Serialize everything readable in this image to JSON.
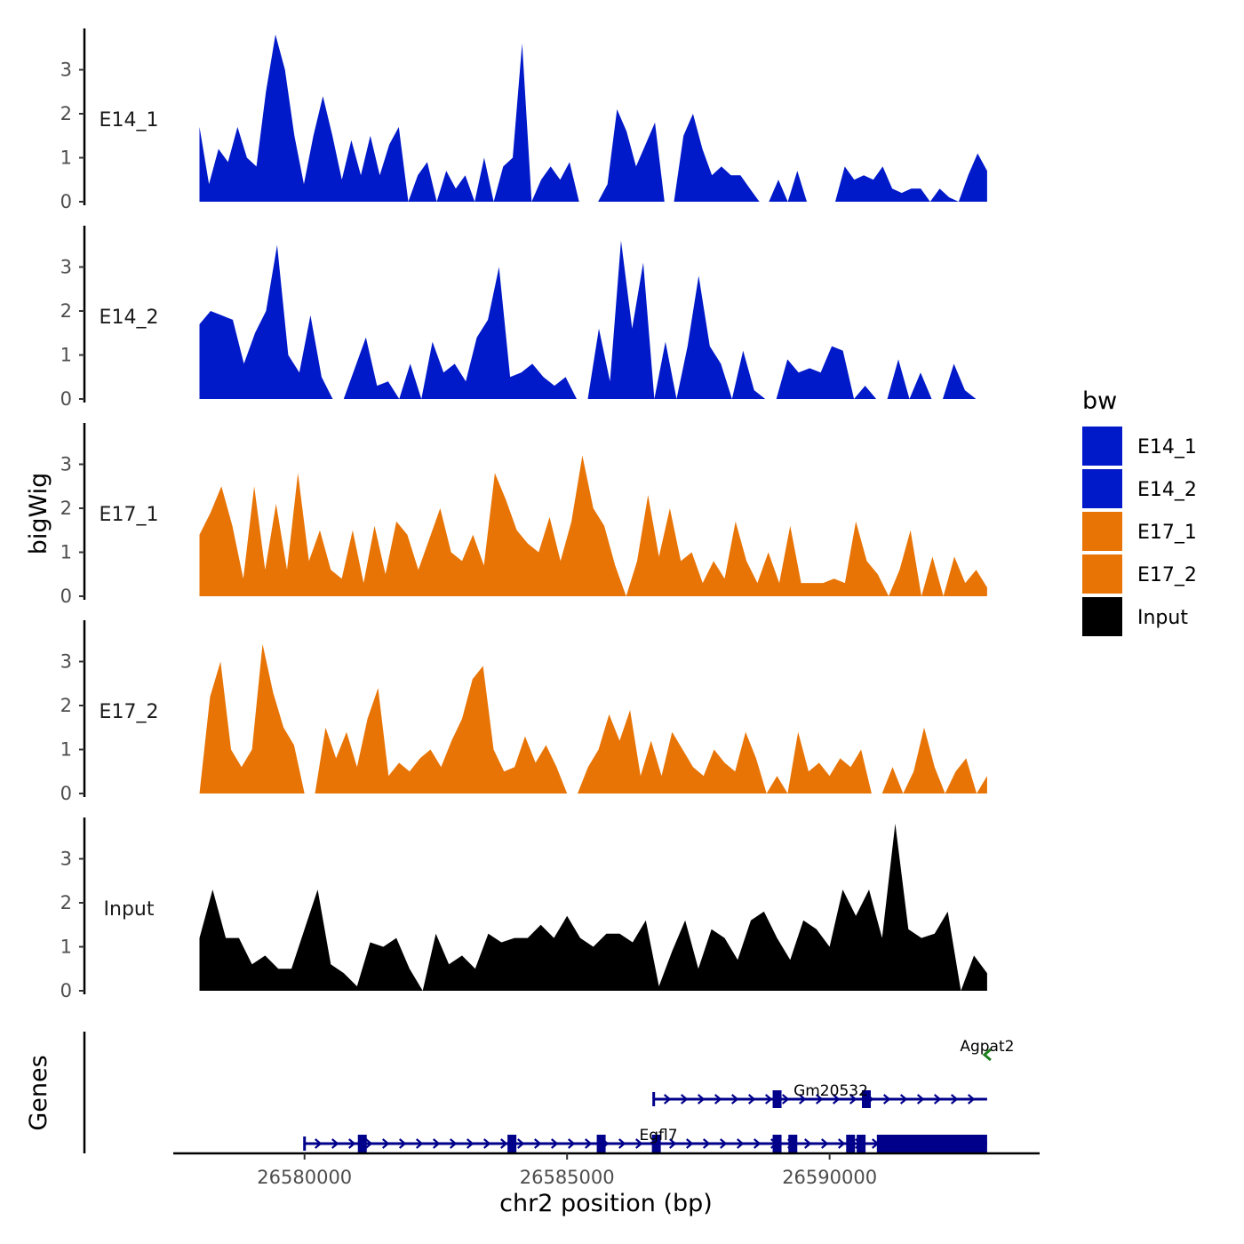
{
  "chart_data": {
    "type": "area",
    "title": "",
    "ylabel": "bigWig",
    "xlabel": "chr2 position (bp)",
    "xlim": [
      26577500,
      26594000
    ],
    "track_x_range": [
      26578000,
      26593000
    ],
    "ylim": [
      0,
      3.85
    ],
    "yticks": [
      0,
      1,
      2,
      3
    ],
    "xticks": [
      26580000,
      26585000,
      26590000
    ],
    "xtick_labels": [
      "26580000",
      "26585000",
      "26590000"
    ],
    "legend": {
      "title": "bw",
      "position": "right",
      "entries": [
        {
          "label": "E14_1",
          "color": "#0019C9"
        },
        {
          "label": "E14_2",
          "color": "#0019C9"
        },
        {
          "label": "E17_1",
          "color": "#E87405"
        },
        {
          "label": "E17_2",
          "color": "#E87405"
        },
        {
          "label": "Input",
          "color": "#000000"
        }
      ]
    },
    "series": [
      {
        "name": "E14_1",
        "color": "#0019C9",
        "values": [
          1.7,
          0.4,
          1.2,
          0.9,
          1.7,
          1.0,
          0.8,
          2.5,
          3.8,
          3.0,
          1.5,
          0.4,
          1.5,
          2.4,
          1.5,
          0.5,
          1.4,
          0.6,
          1.5,
          0.6,
          1.3,
          1.7,
          0.0,
          0.6,
          0.9,
          0.0,
          0.7,
          0.3,
          0.6,
          0.0,
          1.0,
          0.0,
          0.8,
          1.0,
          3.6,
          0.0,
          0.5,
          0.8,
          0.5,
          0.9,
          0.0,
          0.0,
          0.0,
          0.4,
          2.1,
          1.6,
          0.8,
          1.3,
          1.8,
          0.0,
          0.0,
          1.5,
          2.0,
          1.2,
          0.6,
          0.8,
          0.6,
          0.6,
          0.3,
          0.0,
          0.0,
          0.5,
          0.0,
          0.7,
          0.0,
          0.0,
          0.0,
          0.0,
          0.8,
          0.5,
          0.6,
          0.5,
          0.8,
          0.3,
          0.2,
          0.3,
          0.3,
          0.0,
          0.3,
          0.1,
          0.0,
          0.6,
          1.1,
          0.7
        ]
      },
      {
        "name": "E14_2",
        "color": "#0019C9",
        "values": [
          1.7,
          2.0,
          1.9,
          1.8,
          0.8,
          1.5,
          2.0,
          3.5,
          1.0,
          0.6,
          1.9,
          0.5,
          0.0,
          0.0,
          0.7,
          1.4,
          0.3,
          0.4,
          0.0,
          0.8,
          0.0,
          1.3,
          0.6,
          0.8,
          0.4,
          1.4,
          1.8,
          3.0,
          0.5,
          0.6,
          0.8,
          0.5,
          0.3,
          0.5,
          0.0,
          0.0,
          1.6,
          0.4,
          3.6,
          1.6,
          3.1,
          0.0,
          1.3,
          0.0,
          1.2,
          2.8,
          1.2,
          0.8,
          0.0,
          1.1,
          0.2,
          0.0,
          0.0,
          0.9,
          0.6,
          0.7,
          0.6,
          1.2,
          1.1,
          0.0,
          0.3,
          0.0,
          0.0,
          0.9,
          0.0,
          0.6,
          0.0,
          0.0,
          0.8,
          0.2,
          0.0,
          0.0
        ]
      },
      {
        "name": "E17_1",
        "color": "#E87405",
        "values": [
          1.4,
          1.9,
          2.5,
          1.6,
          0.4,
          2.5,
          0.6,
          2.1,
          0.6,
          2.8,
          0.8,
          1.5,
          0.6,
          0.4,
          1.5,
          0.3,
          1.6,
          0.5,
          1.7,
          1.4,
          0.6,
          1.3,
          2.0,
          1.0,
          0.8,
          1.4,
          0.7,
          2.8,
          2.2,
          1.5,
          1.2,
          1.0,
          1.8,
          0.8,
          1.7,
          3.2,
          2.0,
          1.6,
          0.7,
          0.0,
          0.8,
          2.3,
          0.9,
          2.0,
          0.8,
          1.0,
          0.3,
          0.8,
          0.4,
          1.7,
          0.8,
          0.3,
          1.0,
          0.3,
          1.6,
          0.3,
          0.3,
          0.3,
          0.4,
          0.3,
          1.7,
          0.8,
          0.5,
          0.0,
          0.6,
          1.5,
          0.0,
          0.9,
          0.0,
          0.9,
          0.3,
          0.6,
          0.2
        ]
      },
      {
        "name": "E17_2",
        "color": "#E87405",
        "values": [
          0.0,
          2.2,
          3.0,
          1.0,
          0.6,
          1.0,
          3.4,
          2.3,
          1.5,
          1.1,
          0.0,
          0.0,
          1.5,
          0.8,
          1.4,
          0.6,
          1.7,
          2.4,
          0.4,
          0.7,
          0.5,
          0.8,
          1.0,
          0.6,
          1.2,
          1.7,
          2.6,
          2.9,
          1.0,
          0.5,
          0.6,
          1.3,
          0.7,
          1.1,
          0.6,
          0.0,
          0.0,
          0.6,
          1.0,
          1.8,
          1.2,
          1.9,
          0.4,
          1.2,
          0.4,
          1.4,
          1.0,
          0.6,
          0.4,
          1.0,
          0.7,
          0.5,
          1.4,
          0.8,
          0.0,
          0.4,
          0.0,
          1.4,
          0.5,
          0.7,
          0.4,
          0.8,
          0.6,
          1.0,
          0.0,
          0.0,
          0.6,
          0.0,
          0.5,
          1.5,
          0.6,
          0.0,
          0.5,
          0.8,
          0.0,
          0.4
        ]
      },
      {
        "name": "Input",
        "color": "#000000",
        "values": [
          1.2,
          2.3,
          1.2,
          1.2,
          0.6,
          0.8,
          0.5,
          0.5,
          1.4,
          2.3,
          0.6,
          0.4,
          0.1,
          1.1,
          1.0,
          1.2,
          0.5,
          0.0,
          1.3,
          0.6,
          0.8,
          0.5,
          1.3,
          1.1,
          1.2,
          1.2,
          1.5,
          1.2,
          1.7,
          1.2,
          1.0,
          1.3,
          1.3,
          1.1,
          1.6,
          0.1,
          0.9,
          1.6,
          0.5,
          1.4,
          1.2,
          0.7,
          1.6,
          1.8,
          1.2,
          0.7,
          1.6,
          1.4,
          1.0,
          2.3,
          1.7,
          2.3,
          1.2,
          3.8,
          1.4,
          1.2,
          1.3,
          1.8,
          0.0,
          0.8,
          0.4
        ]
      }
    ],
    "gene_track": {
      "ylabel": "Genes",
      "genes": [
        {
          "name": "Agpat2",
          "start": 26593000,
          "end": 26593100,
          "strand": "-",
          "color": "#1E7F1E"
        },
        {
          "name": "Gm20532",
          "start": 26586650,
          "end": 26593000,
          "strand": "+",
          "color": "#00008B"
        },
        {
          "name": "Egfl7",
          "start": 26580000,
          "end": 26593000,
          "strand": "+",
          "color": "#00008B"
        }
      ]
    }
  }
}
